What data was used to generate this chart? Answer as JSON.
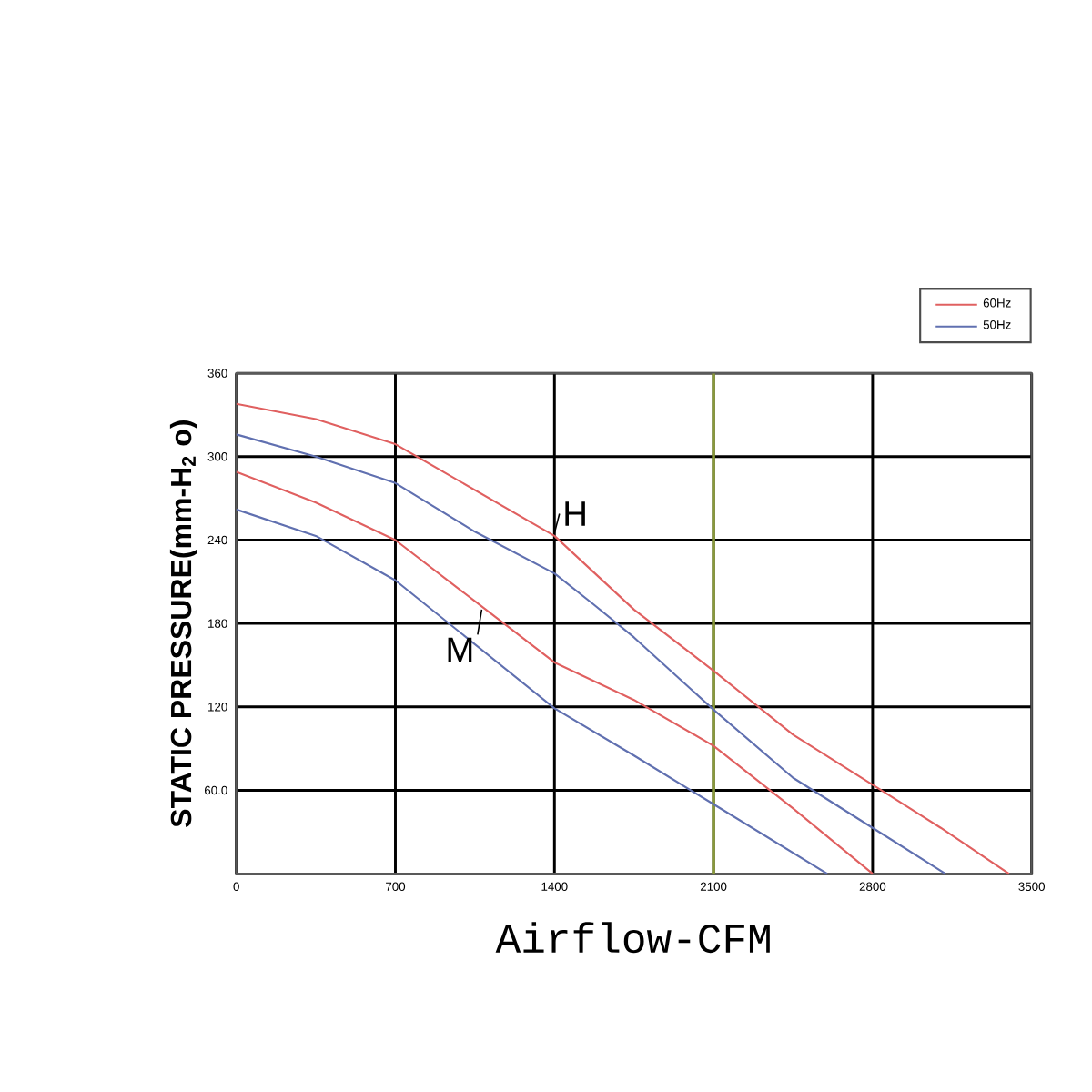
{
  "chart_data": {
    "type": "line",
    "xlabel": "Airflow-CFM",
    "ylabel": "STATIC PRESSURE(mm-H$_{2}$ o)",
    "xlim": [
      0,
      3500
    ],
    "xticks": [
      0,
      700,
      1400,
      2100,
      2800,
      3500
    ],
    "ylim": [
      0,
      360
    ],
    "yticks": [
      {
        "value": 60,
        "label": "60.0"
      },
      120,
      180,
      240,
      300,
      360
    ],
    "grid": true,
    "legend": "top right",
    "marker": "none",
    "line_style": "solid",
    "series": [
      {
        "name": "60Hz",
        "color": "#e06060",
        "x": [
          0,
          350,
          700,
          1050,
          1400,
          1750,
          2100,
          2450,
          2800,
          3100,
          3400
        ],
        "values": [
          338,
          327,
          309,
          276,
          243,
          190,
          146,
          100,
          64,
          33,
          0
        ]
      },
      {
        "name": "50Hz",
        "color": "#6070b0",
        "x": [
          0,
          350,
          700,
          1050,
          1400,
          1570,
          1750,
          2100,
          2450,
          2800,
          3120
        ],
        "values": [
          316,
          300,
          281,
          246,
          216,
          194,
          170,
          118,
          69,
          33,
          0
        ]
      },
      {
        "color": "#e06060",
        "x": [
          0,
          350,
          700,
          1050,
          1400,
          1750,
          2100,
          2450,
          2800
        ],
        "values": [
          289,
          267,
          240,
          196,
          152,
          125,
          92,
          47,
          0
        ]
      },
      {
        "color": "#6070b0",
        "x": [
          0,
          350,
          700,
          1050,
          1400,
          1750,
          2100,
          2350,
          2600
        ],
        "values": [
          262,
          243,
          211,
          165,
          119,
          85,
          50,
          25,
          0
        ]
      }
    ],
    "ref_lines": [
      {
        "axis": "x",
        "value": 2100,
        "color": "#8a9a3a"
      }
    ],
    "annotations": [
      {
        "text": "H",
        "x": 1400,
        "y": 245
      },
      {
        "text": "M",
        "x": 1080,
        "y": 190
      }
    ]
  }
}
